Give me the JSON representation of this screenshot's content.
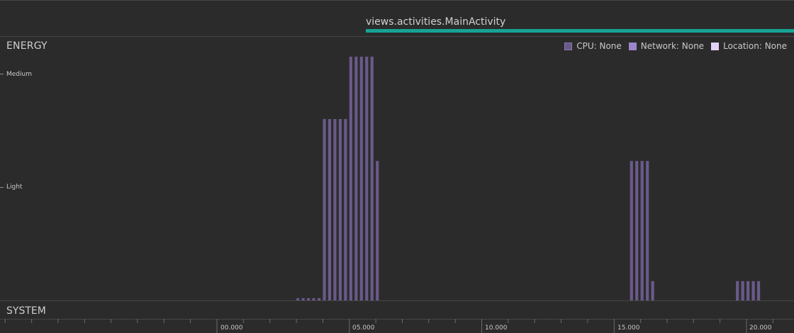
{
  "activity": {
    "label": "views.activities.MainActivity",
    "color": "#16a394"
  },
  "energy": {
    "title": "ENERGY",
    "legend": [
      {
        "label": "CPU: None",
        "color": "#6a5a8a"
      },
      {
        "label": "Network: None",
        "color": "#9d85cc"
      },
      {
        "label": "Location: None",
        "color": "#e3d2f5"
      }
    ],
    "levels": [
      "Medium",
      "Light"
    ]
  },
  "system": {
    "title": "SYSTEM"
  },
  "timeline": {
    "labels": [
      "00.000",
      "05.000",
      "10.000",
      "15.000",
      "20.000"
    ]
  },
  "chart_data": {
    "type": "bar",
    "series": [
      {
        "name": "CPU",
        "color": "#6a5a8a",
        "x": [
          0.0,
          0.2,
          0.4,
          0.6,
          0.8,
          1.0,
          1.2,
          1.4,
          1.6,
          1.8,
          2.0,
          2.2,
          2.4,
          2.6,
          2.8,
          3.0,
          3.2,
          3.4,
          3.6,
          3.8,
          4.0,
          4.2,
          4.4,
          4.6,
          4.8,
          5.0,
          5.2,
          5.4,
          5.6,
          5.8,
          6.0,
          15.6,
          15.8,
          16.0,
          16.2,
          16.4,
          19.6,
          19.8,
          20.0,
          20.2,
          20.4
        ],
        "values": [
          0,
          0,
          0,
          0,
          0,
          0,
          0,
          0,
          0,
          0,
          0,
          0,
          0,
          0,
          0,
          0.02,
          0.02,
          0.02,
          0.02,
          0.02,
          1.6,
          1.6,
          1.6,
          1.6,
          1.6,
          2.15,
          2.15,
          2.15,
          2.15,
          2.15,
          1.23,
          1.23,
          1.23,
          1.23,
          1.23,
          0.17,
          0.17,
          0.17,
          0.17,
          0.17,
          0.17
        ]
      }
    ],
    "y_levels": [
      {
        "label": "Light",
        "value": 1.0
      },
      {
        "label": "Medium",
        "value": 2.0
      }
    ],
    "ylim": [
      0,
      2.3
    ],
    "xlim": [
      -8.2,
      21.3
    ],
    "x_ticks": [
      "00.000",
      "05.000",
      "10.000",
      "15.000",
      "20.000"
    ]
  }
}
